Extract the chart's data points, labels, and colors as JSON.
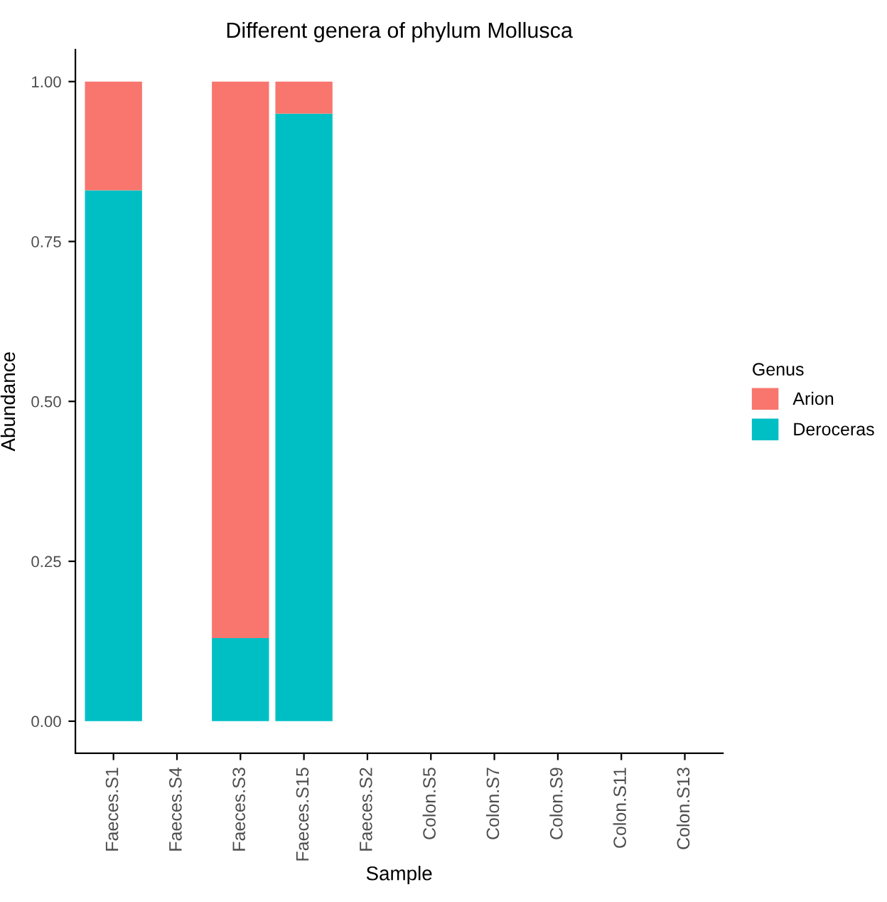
{
  "chart_data": {
    "type": "bar",
    "title": "Different genera of phylum Mollusca",
    "xlabel": "Sample",
    "ylabel": "Abundance",
    "legend_title": "Genus",
    "categories": [
      "Faeces.S1",
      "Faeces.S4",
      "Faeces.S3",
      "Faeces.S15",
      "Faeces.S2",
      "Colon.S5",
      "Colon.S7",
      "Colon.S9",
      "Colon.S11",
      "Colon.S13"
    ],
    "stacked": true,
    "series": [
      {
        "name": "Deroceras",
        "color": "#00bfc4",
        "values": [
          0.83,
          0,
          0.13,
          0.95,
          0,
          0,
          0,
          0,
          0,
          0
        ]
      },
      {
        "name": "Arion",
        "color": "#f8766d",
        "values": [
          0.17,
          0,
          0.87,
          0.05,
          0,
          0,
          0,
          0,
          0,
          0
        ]
      }
    ],
    "ylim": [
      -0.05,
      1.05
    ],
    "yticks": [
      {
        "value": 0,
        "label": "0.00"
      },
      {
        "value": 0.25,
        "label": "0.25"
      },
      {
        "value": 0.5,
        "label": "0.50"
      },
      {
        "value": 0.75,
        "label": "0.75"
      },
      {
        "value": 1,
        "label": "1.00"
      }
    ],
    "grid": false,
    "legend": "right"
  }
}
